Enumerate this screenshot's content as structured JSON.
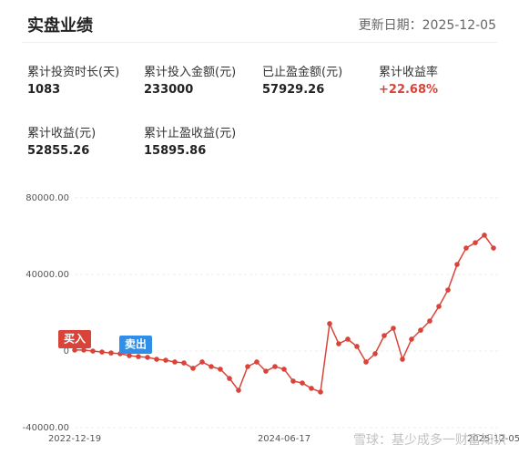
{
  "header": {
    "title": "实盘业绩",
    "update": "更新日期：2025-12-05"
  },
  "stats": [
    {
      "label": "累计投资时长(天)",
      "value": "1083"
    },
    {
      "label": "累计投入金额(元)",
      "value": "233000"
    },
    {
      "label": "已止盈金额(元)",
      "value": "57929.26"
    },
    {
      "label": "累计收益率",
      "value": "+22.68%"
    },
    {
      "label": "累计收益(元)",
      "value": "52855.26"
    },
    {
      "label": "累计止盈收益(元)",
      "value": "15895.86"
    }
  ],
  "chart_data": {
    "type": "line",
    "color": "#d9443a",
    "categories": [
      "2022-12-19",
      null,
      null,
      null,
      null,
      null,
      null,
      null,
      null,
      null,
      null,
      null,
      null,
      null,
      null,
      null,
      null,
      null,
      null,
      null,
      null,
      null,
      null,
      "2024-06-17",
      null,
      null,
      null,
      null,
      null,
      null,
      null,
      null,
      null,
      null,
      null,
      null,
      null,
      null,
      null,
      null,
      null,
      null,
      null,
      null,
      null,
      null,
      "2025-12-05"
    ],
    "values": [
      500,
      500,
      0,
      -500,
      -1000,
      -1400,
      -2400,
      -2900,
      -3300,
      -4300,
      -4800,
      -5700,
      -6200,
      -9000,
      -5700,
      -8100,
      -9500,
      -14300,
      -20500,
      -8100,
      -5700,
      -10500,
      -8100,
      -9500,
      -15700,
      -16700,
      -19500,
      -21400,
      14300,
      3800,
      6200,
      2400,
      -5700,
      -1400,
      8100,
      11900,
      -4300,
      6200,
      10900,
      15700,
      23300,
      31900,
      45200,
      53800,
      56600,
      60500,
      53800
    ],
    "ylim": [
      -40000,
      80000
    ],
    "yticks": [
      {
        "value": -40000,
        "label": "-40000.00"
      },
      {
        "value": 0,
        "label": "0"
      },
      {
        "value": 40000,
        "label": "40000.00"
      },
      {
        "value": 80000,
        "label": "80000.00"
      }
    ],
    "grid": true,
    "annotations": [
      "买入",
      "卖出"
    ],
    "watermark": "雪球：基少成多一财富知识"
  }
}
